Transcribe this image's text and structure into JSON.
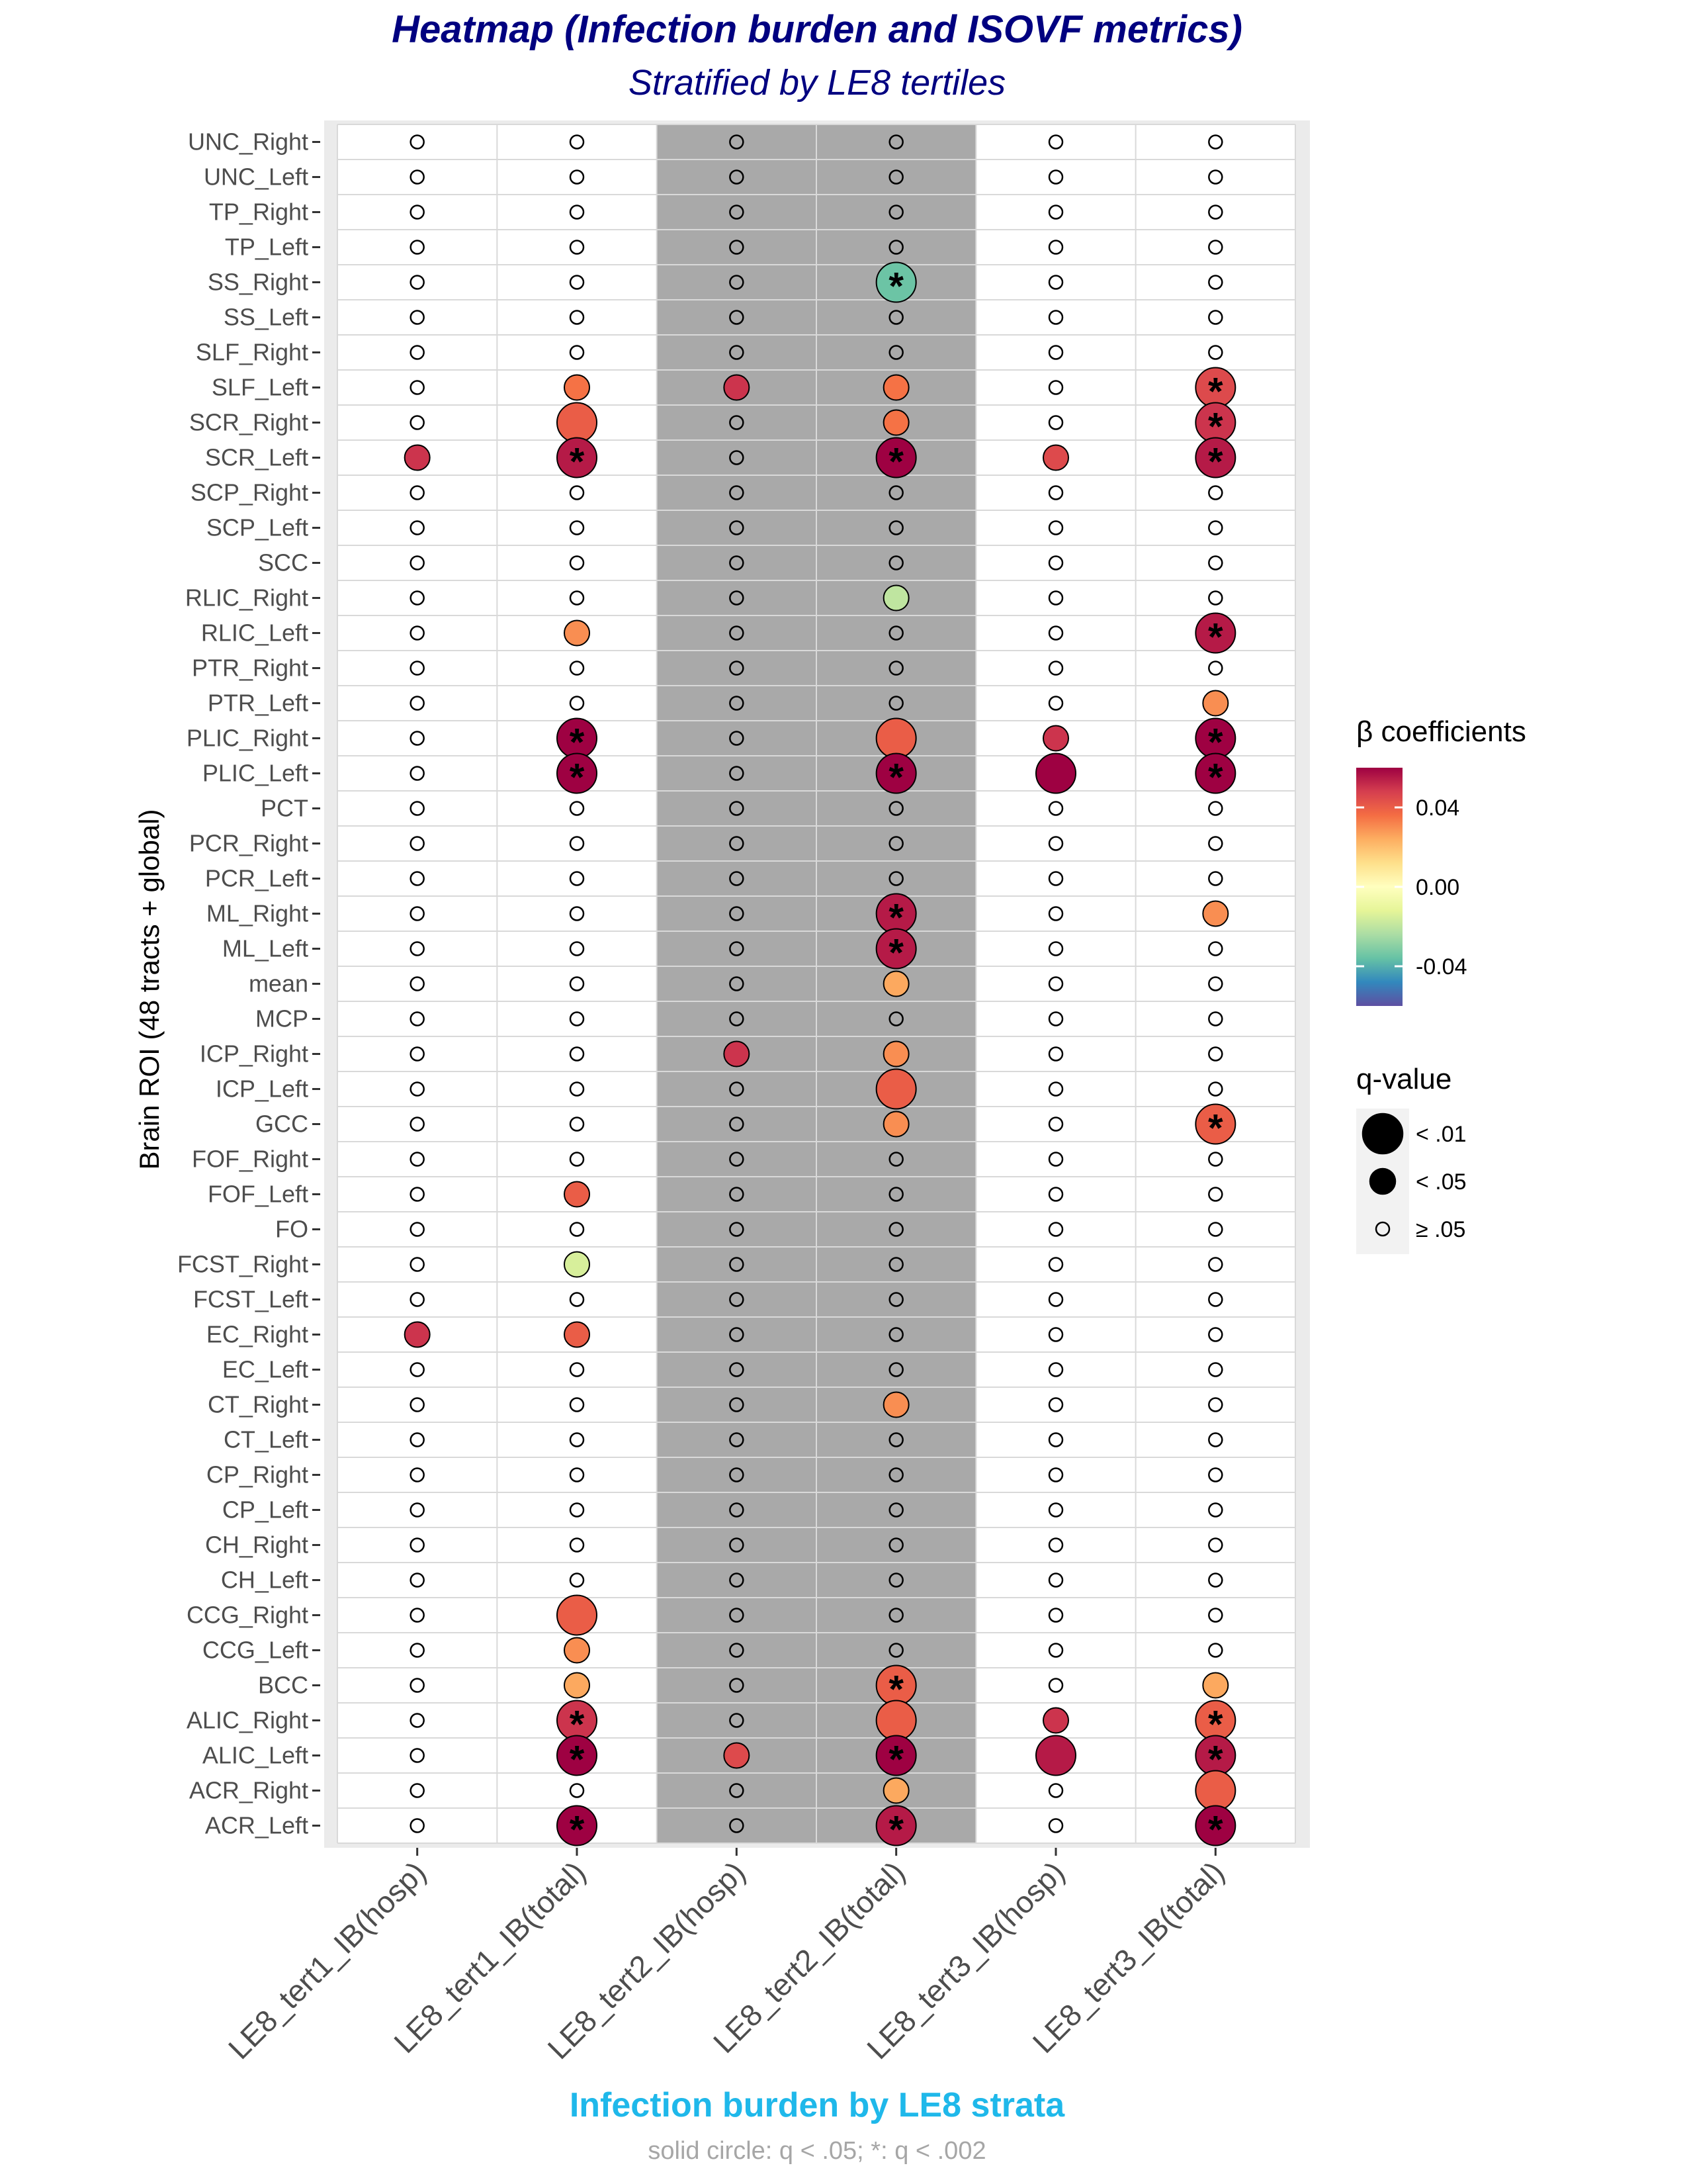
{
  "chart_data": {
    "type": "heatmap",
    "title": "Heatmap (Infection burden and ISOVF metrics)",
    "subtitle": "Stratified by LE8 tertiles",
    "xlabel": "Infection burden by LE8 strata",
    "ylabel": "Brain ROI (48 tracts + global)",
    "caption": "solid circle: q < .05; *: q < .002",
    "x": [
      "LE8_tert1_IB(hosp)",
      "LE8_tert1_IB(total)",
      "LE8_tert2_IB(hosp)",
      "LE8_tert2_IB(total)",
      "LE8_tert3_IB(hosp)",
      "LE8_tert3_IB(total)"
    ],
    "shaded_columns": [
      "LE8_tert2_IB(hosp)",
      "LE8_tert2_IB(total)"
    ],
    "y": [
      "UNC_Right",
      "UNC_Left",
      "TP_Right",
      "TP_Left",
      "SS_Right",
      "SS_Left",
      "SLF_Right",
      "SLF_Left",
      "SCR_Right",
      "SCR_Left",
      "SCP_Right",
      "SCP_Left",
      "SCC",
      "RLIC_Right",
      "RLIC_Left",
      "PTR_Right",
      "PTR_Left",
      "PLIC_Right",
      "PLIC_Left",
      "PCT",
      "PCR_Right",
      "PCR_Left",
      "ML_Right",
      "ML_Left",
      "mean",
      "MCP",
      "ICP_Right",
      "ICP_Left",
      "GCC",
      "FOF_Right",
      "FOF_Left",
      "FO",
      "FCST_Right",
      "FCST_Left",
      "EC_Right",
      "EC_Left",
      "CT_Right",
      "CT_Left",
      "CP_Right",
      "CP_Left",
      "CH_Right",
      "CH_Left",
      "CCG_Right",
      "CCG_Left",
      "BCC",
      "ALIC_Right",
      "ALIC_Left",
      "ACR_Right",
      "ACR_Left"
    ],
    "points": [
      {
        "roi": "SS_Right",
        "col": 3,
        "beta": -0.035,
        "q": "<.01",
        "star": true
      },
      {
        "roi": "SLF_Left",
        "col": 1,
        "beta": 0.035,
        "q": "<.05",
        "star": false
      },
      {
        "roi": "SLF_Left",
        "col": 2,
        "beta": 0.05,
        "q": "<.05",
        "star": false
      },
      {
        "roi": "SLF_Left",
        "col": 3,
        "beta": 0.035,
        "q": "<.05",
        "star": false
      },
      {
        "roi": "SLF_Left",
        "col": 5,
        "beta": 0.045,
        "q": "<.01",
        "star": true
      },
      {
        "roi": "SCR_Right",
        "col": 1,
        "beta": 0.04,
        "q": "<.01",
        "star": false
      },
      {
        "roi": "SCR_Right",
        "col": 3,
        "beta": 0.035,
        "q": "<.05",
        "star": false
      },
      {
        "roi": "SCR_Right",
        "col": 5,
        "beta": 0.05,
        "q": "<.01",
        "star": true
      },
      {
        "roi": "SCR_Left",
        "col": 0,
        "beta": 0.05,
        "q": "<.05",
        "star": false
      },
      {
        "roi": "SCR_Left",
        "col": 1,
        "beta": 0.055,
        "q": "<.01",
        "star": true
      },
      {
        "roi": "SCR_Left",
        "col": 3,
        "beta": 0.065,
        "q": "<.01",
        "star": true
      },
      {
        "roi": "SCR_Left",
        "col": 4,
        "beta": 0.045,
        "q": "<.05",
        "star": false
      },
      {
        "roi": "SCR_Left",
        "col": 5,
        "beta": 0.055,
        "q": "<.01",
        "star": true
      },
      {
        "roi": "RLIC_Right",
        "col": 3,
        "beta": -0.02,
        "q": "<.05",
        "star": false
      },
      {
        "roi": "RLIC_Left",
        "col": 1,
        "beta": 0.03,
        "q": "<.05",
        "star": false
      },
      {
        "roi": "RLIC_Left",
        "col": 5,
        "beta": 0.055,
        "q": "<.01",
        "star": true
      },
      {
        "roi": "PTR_Left",
        "col": 5,
        "beta": 0.03,
        "q": "<.05",
        "star": false
      },
      {
        "roi": "PLIC_Right",
        "col": 1,
        "beta": 0.075,
        "q": "<.01",
        "star": true
      },
      {
        "roi": "PLIC_Right",
        "col": 3,
        "beta": 0.04,
        "q": "<.01",
        "star": false
      },
      {
        "roi": "PLIC_Right",
        "col": 4,
        "beta": 0.05,
        "q": "<.05",
        "star": false
      },
      {
        "roi": "PLIC_Right",
        "col": 5,
        "beta": 0.075,
        "q": "<.01",
        "star": true
      },
      {
        "roi": "PLIC_Left",
        "col": 1,
        "beta": 0.065,
        "q": "<.01",
        "star": true
      },
      {
        "roi": "PLIC_Left",
        "col": 3,
        "beta": 0.085,
        "q": "<.01",
        "star": true
      },
      {
        "roi": "PLIC_Left",
        "col": 4,
        "beta": 0.065,
        "q": "<.01",
        "star": false
      },
      {
        "roi": "PLIC_Left",
        "col": 5,
        "beta": 0.085,
        "q": "<.01",
        "star": true
      },
      {
        "roi": "ML_Right",
        "col": 3,
        "beta": 0.055,
        "q": "<.01",
        "star": true
      },
      {
        "roi": "ML_Right",
        "col": 5,
        "beta": 0.03,
        "q": "<.05",
        "star": false
      },
      {
        "roi": "ML_Left",
        "col": 3,
        "beta": 0.055,
        "q": "<.01",
        "star": true
      },
      {
        "roi": "mean",
        "col": 3,
        "beta": 0.025,
        "q": "<.05",
        "star": false
      },
      {
        "roi": "ICP_Right",
        "col": 2,
        "beta": 0.05,
        "q": "<.05",
        "star": false
      },
      {
        "roi": "ICP_Right",
        "col": 3,
        "beta": 0.03,
        "q": "<.05",
        "star": false
      },
      {
        "roi": "ICP_Left",
        "col": 3,
        "beta": 0.04,
        "q": "<.01",
        "star": false
      },
      {
        "roi": "GCC",
        "col": 3,
        "beta": 0.03,
        "q": "<.05",
        "star": false
      },
      {
        "roi": "GCC",
        "col": 5,
        "beta": 0.04,
        "q": "<.01",
        "star": true
      },
      {
        "roi": "FOF_Left",
        "col": 1,
        "beta": 0.04,
        "q": "<.05",
        "star": false
      },
      {
        "roi": "FCST_Right",
        "col": 1,
        "beta": -0.015,
        "q": "<.05",
        "star": false
      },
      {
        "roi": "EC_Right",
        "col": 0,
        "beta": 0.05,
        "q": "<.05",
        "star": false
      },
      {
        "roi": "EC_Right",
        "col": 1,
        "beta": 0.04,
        "q": "<.05",
        "star": false
      },
      {
        "roi": "CT_Right",
        "col": 3,
        "beta": 0.03,
        "q": "<.05",
        "star": false
      },
      {
        "roi": "CCG_Right",
        "col": 1,
        "beta": 0.04,
        "q": "<.01",
        "star": false
      },
      {
        "roi": "CCG_Left",
        "col": 1,
        "beta": 0.03,
        "q": "<.05",
        "star": false
      },
      {
        "roi": "BCC",
        "col": 1,
        "beta": 0.025,
        "q": "<.05",
        "star": false
      },
      {
        "roi": "BCC",
        "col": 3,
        "beta": 0.04,
        "q": "<.01",
        "star": true
      },
      {
        "roi": "BCC",
        "col": 5,
        "beta": 0.025,
        "q": "<.05",
        "star": false
      },
      {
        "roi": "ALIC_Right",
        "col": 1,
        "beta": 0.05,
        "q": "<.01",
        "star": true
      },
      {
        "roi": "ALIC_Right",
        "col": 3,
        "beta": 0.04,
        "q": "<.01",
        "star": false
      },
      {
        "roi": "ALIC_Right",
        "col": 4,
        "beta": 0.05,
        "q": "<.05",
        "star": false
      },
      {
        "roi": "ALIC_Right",
        "col": 5,
        "beta": 0.04,
        "q": "<.01",
        "star": true
      },
      {
        "roi": "ALIC_Left",
        "col": 1,
        "beta": 0.06,
        "q": "<.01",
        "star": true
      },
      {
        "roi": "ALIC_Left",
        "col": 2,
        "beta": 0.045,
        "q": "<.05",
        "star": false
      },
      {
        "roi": "ALIC_Left",
        "col": 3,
        "beta": 0.07,
        "q": "<.01",
        "star": true
      },
      {
        "roi": "ALIC_Left",
        "col": 4,
        "beta": 0.055,
        "q": "<.01",
        "star": false
      },
      {
        "roi": "ALIC_Left",
        "col": 5,
        "beta": 0.055,
        "q": "<.01",
        "star": true
      },
      {
        "roi": "ACR_Right",
        "col": 3,
        "beta": 0.025,
        "q": "<.05",
        "star": false
      },
      {
        "roi": "ACR_Right",
        "col": 5,
        "beta": 0.04,
        "q": "<.01",
        "star": false
      },
      {
        "roi": "ACR_Left",
        "col": 1,
        "beta": 0.06,
        "q": "<.01",
        "star": true
      },
      {
        "roi": "ACR_Left",
        "col": 3,
        "beta": 0.055,
        "q": "<.01",
        "star": true
      },
      {
        "roi": "ACR_Left",
        "col": 5,
        "beta": 0.07,
        "q": "<.01",
        "star": true
      }
    ],
    "legend": {
      "color_title": "β coefficients",
      "color_ticks": [
        0.04,
        0.0,
        -0.04
      ],
      "color_tick_labels": [
        "0.04",
        "0.00",
        "-0.04"
      ],
      "color_range": [
        -0.06,
        0.06
      ],
      "size_title": "q-value",
      "size_labels": [
        "< .01",
        "< .05",
        "≥ .05"
      ],
      "placement": "right"
    },
    "colors": {
      "panel_bg": "#ebebeb",
      "cell_bg": "#ffffff",
      "shaded_bg": "#a9a9a9",
      "grid": "#d9d9d9",
      "scale": [
        "#5e4fa2",
        "#3288bd",
        "#66c2a5",
        "#abdda4",
        "#e6f598",
        "#ffffbf",
        "#fee08b",
        "#fdae61",
        "#f46d43",
        "#d53e4f",
        "#9e0142"
      ]
    }
  }
}
